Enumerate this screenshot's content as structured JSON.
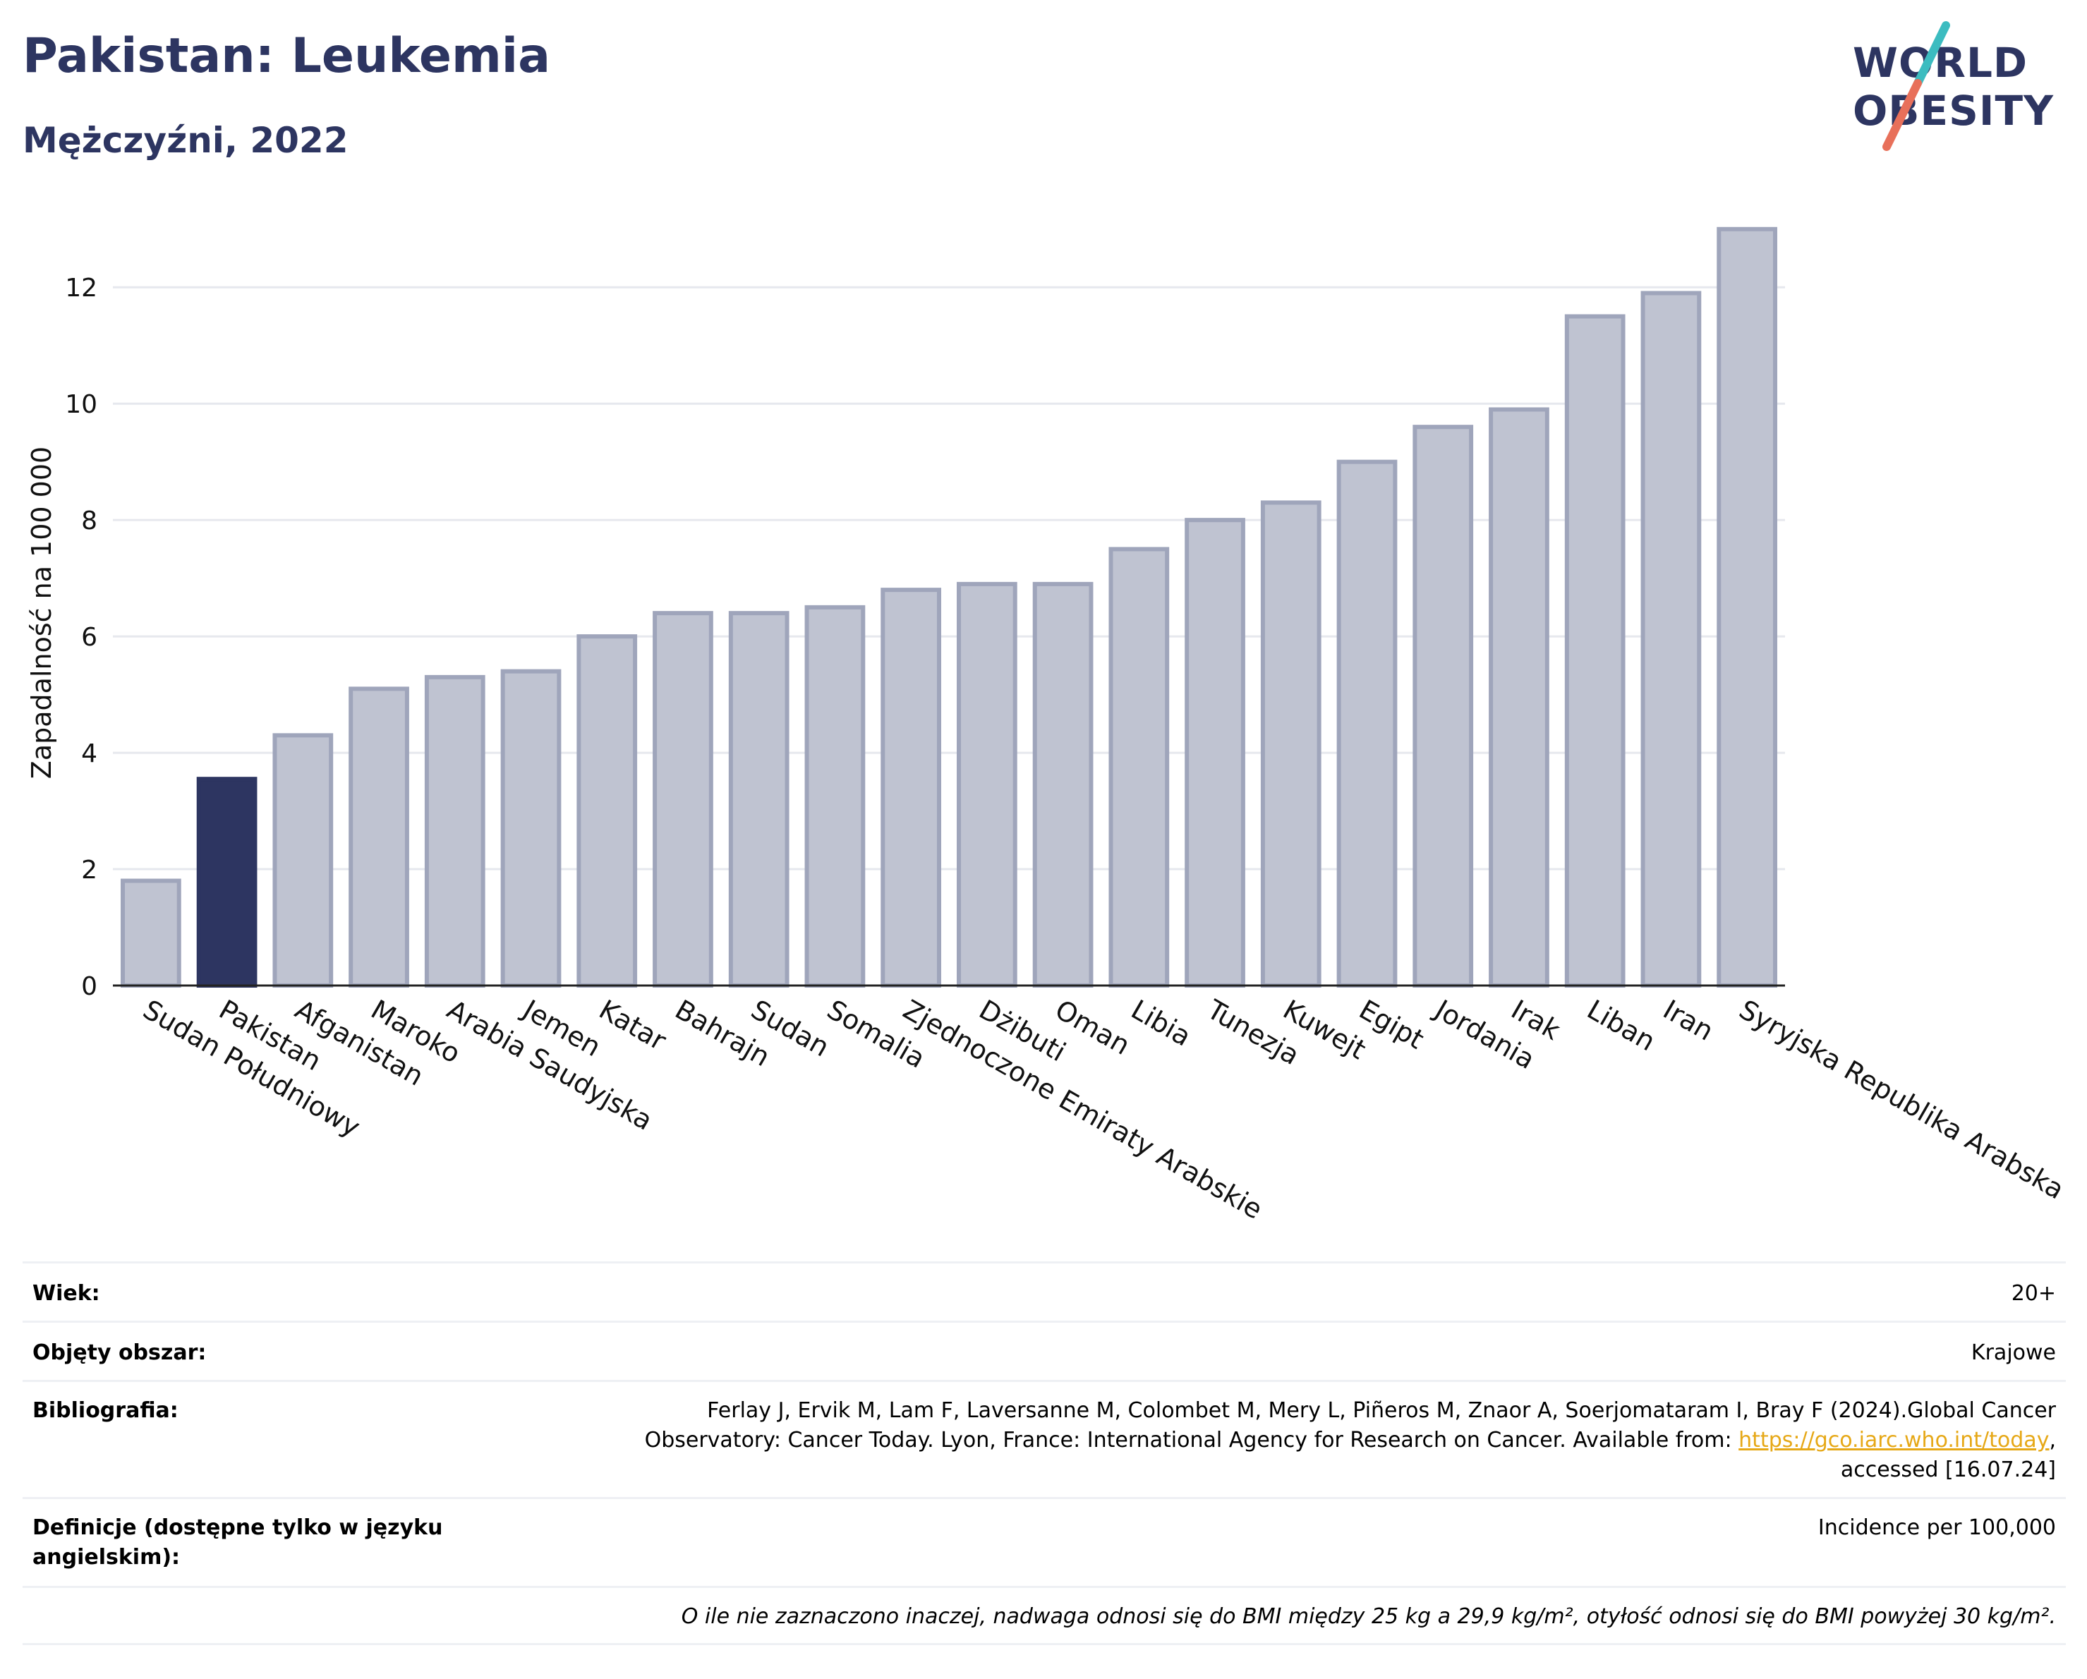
{
  "title": "Pakistan: Leukemia",
  "subtitle": "Mężczyźni, 2022",
  "logo": {
    "line1": "WORLD",
    "line2": "OBESITY"
  },
  "colors": {
    "highlight": "#2d3561",
    "bar": "#bfc3d1",
    "bar_border": "#9fa5bb",
    "title": "#2d3561",
    "logo_slash_red": "#e8705a",
    "logo_slash_teal": "#3cbcc0"
  },
  "chart_data": {
    "type": "bar",
    "categories": [
      "Sudan Południowy",
      "Pakistan",
      "Afganistan",
      "Maroko",
      "Arabia Saudyjska",
      "Jemen",
      "Katar",
      "Bahrajn",
      "Sudan",
      "Somalia",
      "Zjednoczone Emiraty Arabskie",
      "Dżibuti",
      "Oman",
      "Libia",
      "Tunezja",
      "Kuwejt",
      "Egipt",
      "Jordania",
      "Irak",
      "Liban",
      "Iran",
      "Syryjska Republika Arabska"
    ],
    "values": [
      1.8,
      3.55,
      4.3,
      5.1,
      5.3,
      5.4,
      6.0,
      6.4,
      6.4,
      6.5,
      6.8,
      6.9,
      6.9,
      7.5,
      8.0,
      8.3,
      9.0,
      9.6,
      9.9,
      11.5,
      11.9,
      13.0
    ],
    "highlight": "Pakistan",
    "ylabel": "Zapadalność na 100 000",
    "ylim": [
      0,
      13.3
    ],
    "yticks": [
      0,
      2,
      4,
      6,
      8,
      10,
      12
    ],
    "grid": true
  },
  "meta": {
    "age_label": "Wiek:",
    "age_value": "20+",
    "area_label": "Objęty obszar:",
    "area_value": "Krajowe",
    "biblio_label": "Bibliografia:",
    "biblio_line1": "Ferlay J, Ervik M, Lam F, Laversanne M, Colombet M, Mery L, Piñeros M, Znaor A, Soerjomataram I, Bray F (2024).Global Cancer",
    "biblio_line2": "Observatory: Cancer Today. Lyon, France: International Agency for Research on Cancer. Available from: ",
    "biblio_link": "https://gco.iarc.who.int/today",
    "biblio_line2_end": ",",
    "biblio_line3": "accessed [16.07.24]",
    "def_label": "Definicje (dostępne tylko w języku angielskim):",
    "def_value": "Incidence per 100,000",
    "note": "O ile nie zaznaczono inaczej, nadwaga odnosi się do BMI między 25 kg a 29,9 kg/m², otyłość odnosi się do BMI powyżej 30 kg/m²."
  }
}
